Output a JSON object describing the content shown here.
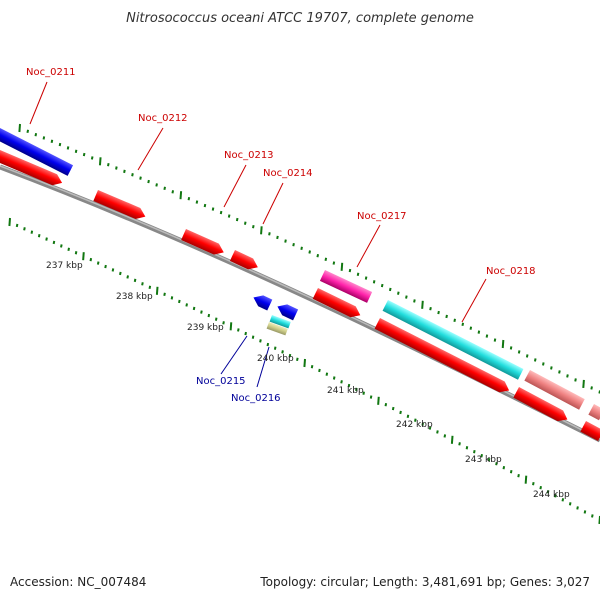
{
  "title": "Nitrosococcus oceani ATCC 19707, complete genome",
  "footer": {
    "accession": "Accession: NC_007484",
    "summary": "Topology: circular; Length: 3,481,691 bp; Genes: 3,027"
  },
  "colors": {
    "forward_cds": "#ff0000",
    "reverse_cds": "#0000ff",
    "label_forward": "#cc0000",
    "label_reverse": "#000099",
    "tick": "#117711",
    "backbone": "#888888",
    "highlight_pink": "#ff33aa",
    "highlight_cyan": "#33dddd",
    "highlight_salmon": "#f08080",
    "highlight_tan": "#cccc88"
  },
  "kbp_ticks": [
    "237 kbp",
    "238 kbp",
    "239 kbp",
    "240 kbp",
    "241 kbp",
    "242 kbp",
    "243 kbp",
    "244 kbp"
  ],
  "genes": [
    {
      "label": "Noc_0211",
      "strand": "reverse"
    },
    {
      "label": "Noc_0212",
      "strand": "forward"
    },
    {
      "label": "Noc_0213",
      "strand": "forward"
    },
    {
      "label": "Noc_0214",
      "strand": "forward"
    },
    {
      "label": "Noc_0215",
      "strand": "reverse"
    },
    {
      "label": "Noc_0216",
      "strand": "reverse"
    },
    {
      "label": "Noc_0217",
      "strand": "forward"
    },
    {
      "label": "Noc_0218",
      "strand": "forward"
    }
  ]
}
